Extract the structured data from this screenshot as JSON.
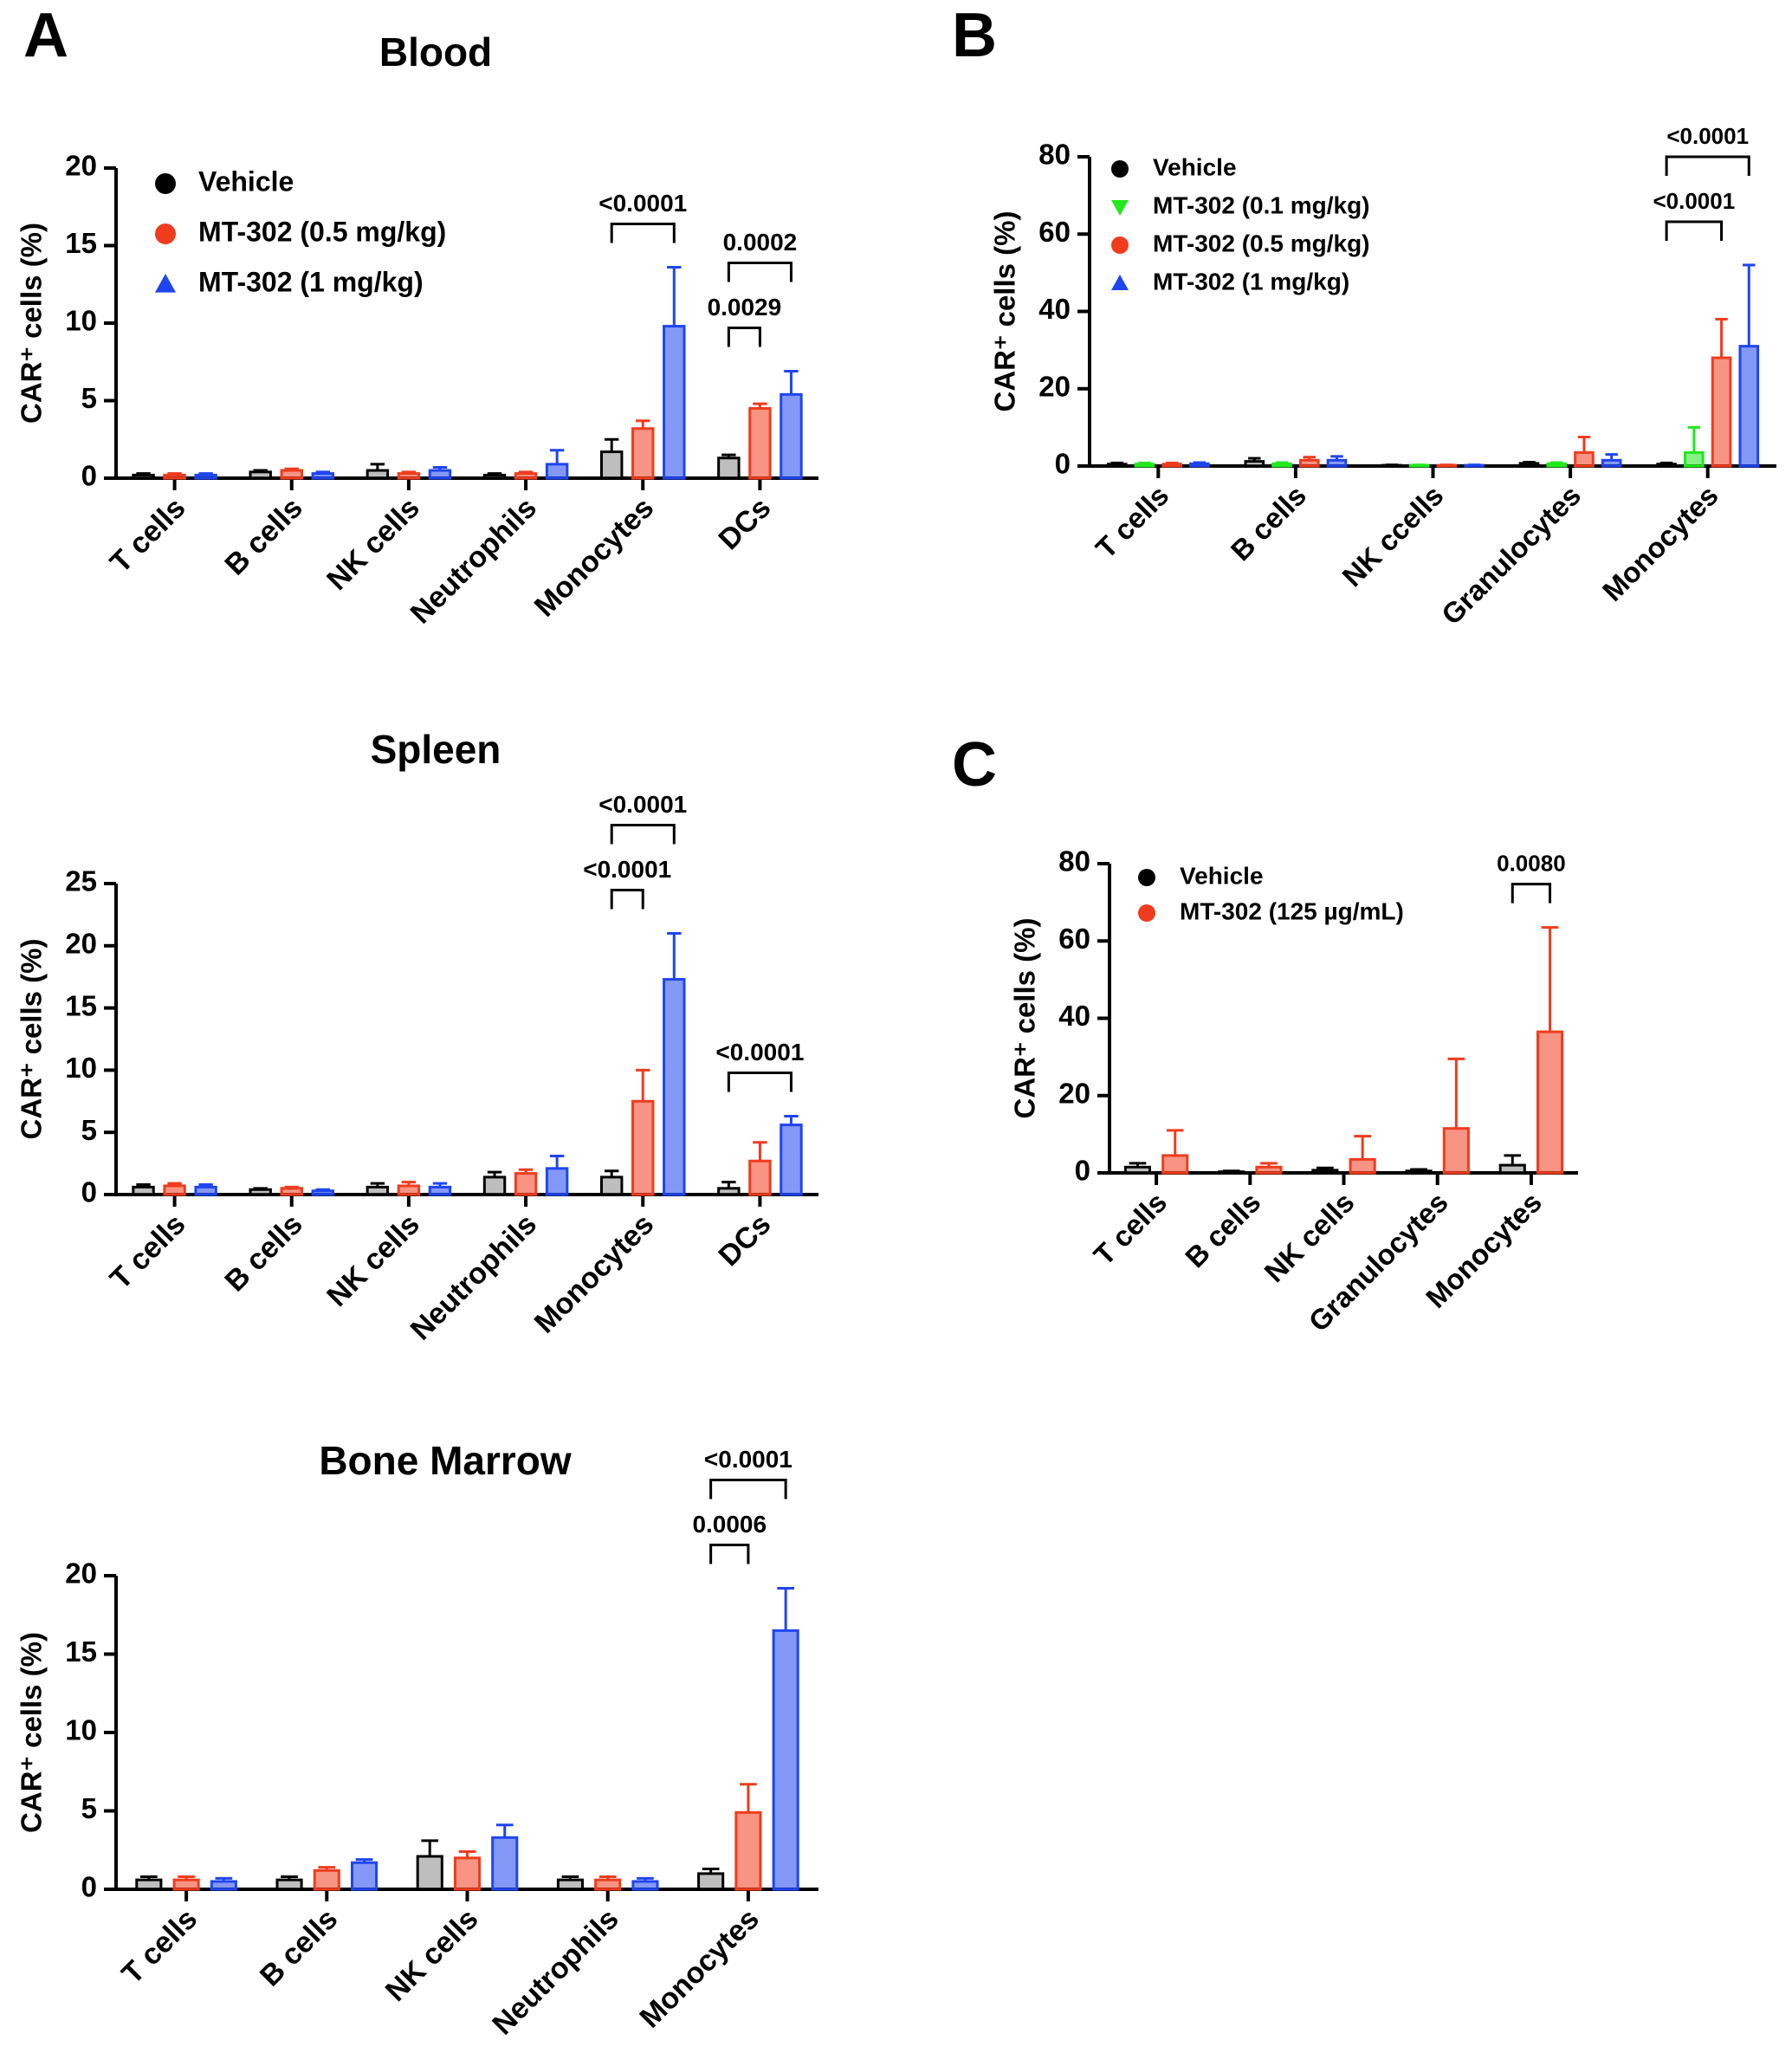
{
  "chart_data": [
    {
      "type": "bar",
      "panel": "A",
      "title": "Blood",
      "ylabel": "CAR⁺ cells (%)",
      "categories": [
        "T cells",
        "B cells",
        "NK cells",
        "Neutrophils",
        "Monocytes",
        "DCs"
      ],
      "ylim": [
        0,
        20
      ],
      "yticks": [
        0,
        5,
        10,
        15,
        20
      ],
      "series": [
        {
          "name": "Vehicle",
          "color": "#000000",
          "marker": "circle",
          "values": [
            0.2,
            0.4,
            0.5,
            0.2,
            1.7,
            1.3
          ],
          "errors": [
            0.1,
            0.1,
            0.4,
            0.1,
            0.8,
            0.2
          ]
        },
        {
          "name": "MT-302 (0.5 mg/kg)",
          "color": "#f03c1e",
          "marker": "circle",
          "values": [
            0.2,
            0.5,
            0.3,
            0.3,
            3.2,
            4.5
          ],
          "errors": [
            0.1,
            0.1,
            0.1,
            0.1,
            0.5,
            0.3
          ]
        },
        {
          "name": "MT-302 (1 mg/kg)",
          "color": "#1f45f0",
          "marker": "triangle",
          "values": [
            0.2,
            0.3,
            0.5,
            0.9,
            9.8,
            5.4
          ],
          "errors": [
            0.1,
            0.1,
            0.2,
            0.9,
            3.8,
            1.5
          ]
        }
      ],
      "annotations": [
        {
          "label": "<0.0001",
          "category": 4,
          "from": 0,
          "to": 2
        },
        {
          "label": "0.0029",
          "category": 5,
          "from": 0,
          "to": 1
        },
        {
          "label": "0.0002",
          "category": 5,
          "from": 0,
          "to": 2
        }
      ]
    },
    {
      "type": "bar",
      "title": "Spleen",
      "ylabel": "CAR⁺ cells (%)",
      "categories": [
        "T cells",
        "B cells",
        "NK cells",
        "Neutrophils",
        "Monocytes",
        "DCs"
      ],
      "ylim": [
        0,
        25
      ],
      "yticks": [
        0,
        5,
        10,
        15,
        20,
        25
      ],
      "series": [
        {
          "name": "Vehicle",
          "color": "#000000",
          "marker": "circle",
          "values": [
            0.6,
            0.4,
            0.6,
            1.4,
            1.4,
            0.5
          ],
          "errors": [
            0.2,
            0.1,
            0.3,
            0.4,
            0.5,
            0.5
          ]
        },
        {
          "name": "MT-302 (0.5 mg/kg)",
          "color": "#f03c1e",
          "marker": "circle",
          "values": [
            0.7,
            0.5,
            0.7,
            1.7,
            7.5,
            2.7
          ],
          "errors": [
            0.2,
            0.1,
            0.3,
            0.3,
            2.5,
            1.5
          ]
        },
        {
          "name": "MT-302 (1 mg/kg)",
          "color": "#1f45f0",
          "marker": "triangle",
          "values": [
            0.6,
            0.3,
            0.6,
            2.1,
            17.3,
            5.6
          ],
          "errors": [
            0.2,
            0.1,
            0.3,
            1.0,
            3.7,
            0.7
          ]
        }
      ],
      "annotations": [
        {
          "label": "<0.0001",
          "category": 4,
          "from": 0,
          "to": 1
        },
        {
          "label": "<0.0001",
          "category": 4,
          "from": 0,
          "to": 2
        },
        {
          "label": "<0.0001",
          "category": 5,
          "from": 0,
          "to": 2
        }
      ]
    },
    {
      "type": "bar",
      "title": "Bone Marrow",
      "ylabel": "CAR⁺ cells (%)",
      "categories": [
        "T cells",
        "B cells",
        "NK cells",
        "Neutrophils",
        "Monocytes"
      ],
      "ylim": [
        0,
        20
      ],
      "yticks": [
        0,
        5,
        10,
        15,
        20
      ],
      "series": [
        {
          "name": "Vehicle",
          "color": "#000000",
          "marker": "circle",
          "values": [
            0.6,
            0.6,
            2.1,
            0.6,
            1.0
          ],
          "errors": [
            0.2,
            0.2,
            1.0,
            0.2,
            0.3
          ]
        },
        {
          "name": "MT-302 (0.5 mg/kg)",
          "color": "#f03c1e",
          "marker": "circle",
          "values": [
            0.6,
            1.2,
            2.0,
            0.6,
            4.9
          ],
          "errors": [
            0.2,
            0.2,
            0.4,
            0.2,
            1.8
          ]
        },
        {
          "name": "MT-302 (1 mg/kg)",
          "color": "#1f45f0",
          "marker": "triangle",
          "values": [
            0.5,
            1.7,
            3.3,
            0.5,
            16.5
          ],
          "errors": [
            0.2,
            0.2,
            0.8,
            0.2,
            2.7
          ]
        }
      ],
      "annotations": [
        {
          "label": "0.0006",
          "category": 4,
          "from": 0,
          "to": 1
        },
        {
          "label": "<0.0001",
          "category": 4,
          "from": 0,
          "to": 2
        }
      ]
    },
    {
      "type": "bar",
      "panel": "B",
      "ylabel": "CAR⁺ cells (%)",
      "categories": [
        "T cells",
        "B cells",
        "NK ccells",
        "Granulocytes",
        "Monocytes"
      ],
      "ylim": [
        0,
        80
      ],
      "yticks": [
        0,
        20,
        40,
        60,
        80
      ],
      "series": [
        {
          "name": "Vehicle",
          "color": "#000000",
          "marker": "circle",
          "values": [
            0.5,
            1.2,
            0.2,
            0.7,
            0.5
          ],
          "errors": [
            0.3,
            0.8,
            0.1,
            0.3,
            0.3
          ]
        },
        {
          "name": "MT-302 (0.1 mg/kg)",
          "color": "#22e81e",
          "marker": "triangle-down",
          "values": [
            0.5,
            0.6,
            0.2,
            0.6,
            3.5
          ],
          "errors": [
            0.3,
            0.3,
            0.1,
            0.3,
            6.5
          ]
        },
        {
          "name": "MT-302 (0.5 mg/kg)",
          "color": "#f03c1e",
          "marker": "circle",
          "values": [
            0.5,
            1.5,
            0.2,
            3.5,
            28
          ],
          "errors": [
            0.3,
            0.8,
            0.1,
            4.0,
            10
          ]
        },
        {
          "name": "MT-302 (1 mg/kg)",
          "color": "#1f45f0",
          "marker": "triangle",
          "values": [
            0.6,
            1.5,
            0.2,
            1.5,
            31
          ],
          "errors": [
            0.3,
            1.0,
            0.1,
            1.5,
            21
          ]
        }
      ],
      "annotations": [
        {
          "label": "<0.0001",
          "category": 4,
          "from": 0,
          "to": 2
        },
        {
          "label": "<0.0001",
          "category": 4,
          "from": 0,
          "to": 3
        }
      ]
    },
    {
      "type": "bar",
      "panel": "C",
      "ylabel": "CAR⁺ cells (%)",
      "categories": [
        "T cells",
        "B cells",
        "NK cells",
        "Granulocytes",
        "Monocytes"
      ],
      "ylim": [
        0,
        80
      ],
      "yticks": [
        0,
        20,
        40,
        60,
        80
      ],
      "series": [
        {
          "name": "Vehicle",
          "color": "#000000",
          "marker": "circle",
          "values": [
            1.5,
            0.3,
            0.7,
            0.5,
            2
          ],
          "errors": [
            1.0,
            0.2,
            0.6,
            0.4,
            2.5
          ]
        },
        {
          "name": "MT-302 (125 µg/mL)",
          "color": "#f03c1e",
          "marker": "circle",
          "values": [
            4.5,
            1.5,
            3.5,
            11.5,
            36.5
          ],
          "errors": [
            6.5,
            1.0,
            6.0,
            18,
            27
          ]
        }
      ],
      "annotations": [
        {
          "label": "0.0080",
          "category": 4,
          "from": 0,
          "to": 1
        }
      ]
    }
  ]
}
